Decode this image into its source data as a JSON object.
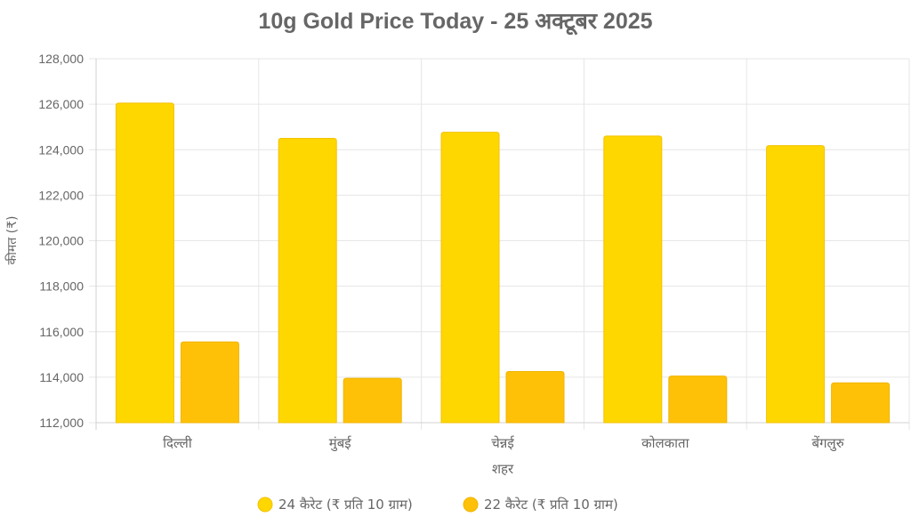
{
  "chart_data": {
    "type": "bar",
    "title": "10g Gold Price Today - 25 अक्टूबर 2025",
    "xlabel": "शहर",
    "ylabel": "कीमत (₹)",
    "ylim": [
      112000,
      128000
    ],
    "yticks": [
      112000,
      114000,
      116000,
      118000,
      120000,
      122000,
      124000,
      126000,
      128000
    ],
    "ytick_labels": [
      "112,000",
      "114,000",
      "116,000",
      "118,000",
      "120,000",
      "122,000",
      "124,000",
      "126,000",
      "128,000"
    ],
    "grid": true,
    "legend_position": "bottom",
    "categories": [
      "दिल्ली",
      "मुंबई",
      "चेन्नई",
      "कोलकाता",
      "बेंगलुरु"
    ],
    "series": [
      {
        "name": "24 कैरेट (₹ प्रति 10 ग्राम)",
        "color": "#FFD700",
        "border": "#F2C200",
        "values": [
          126050,
          124500,
          124770,
          124600,
          124180
        ]
      },
      {
        "name": "22 कैरेट (₹ प्रति 10 ग्राम)",
        "color": "#FFC107",
        "border": "#F0B400",
        "values": [
          115550,
          113950,
          114250,
          114050,
          113750
        ]
      }
    ]
  }
}
